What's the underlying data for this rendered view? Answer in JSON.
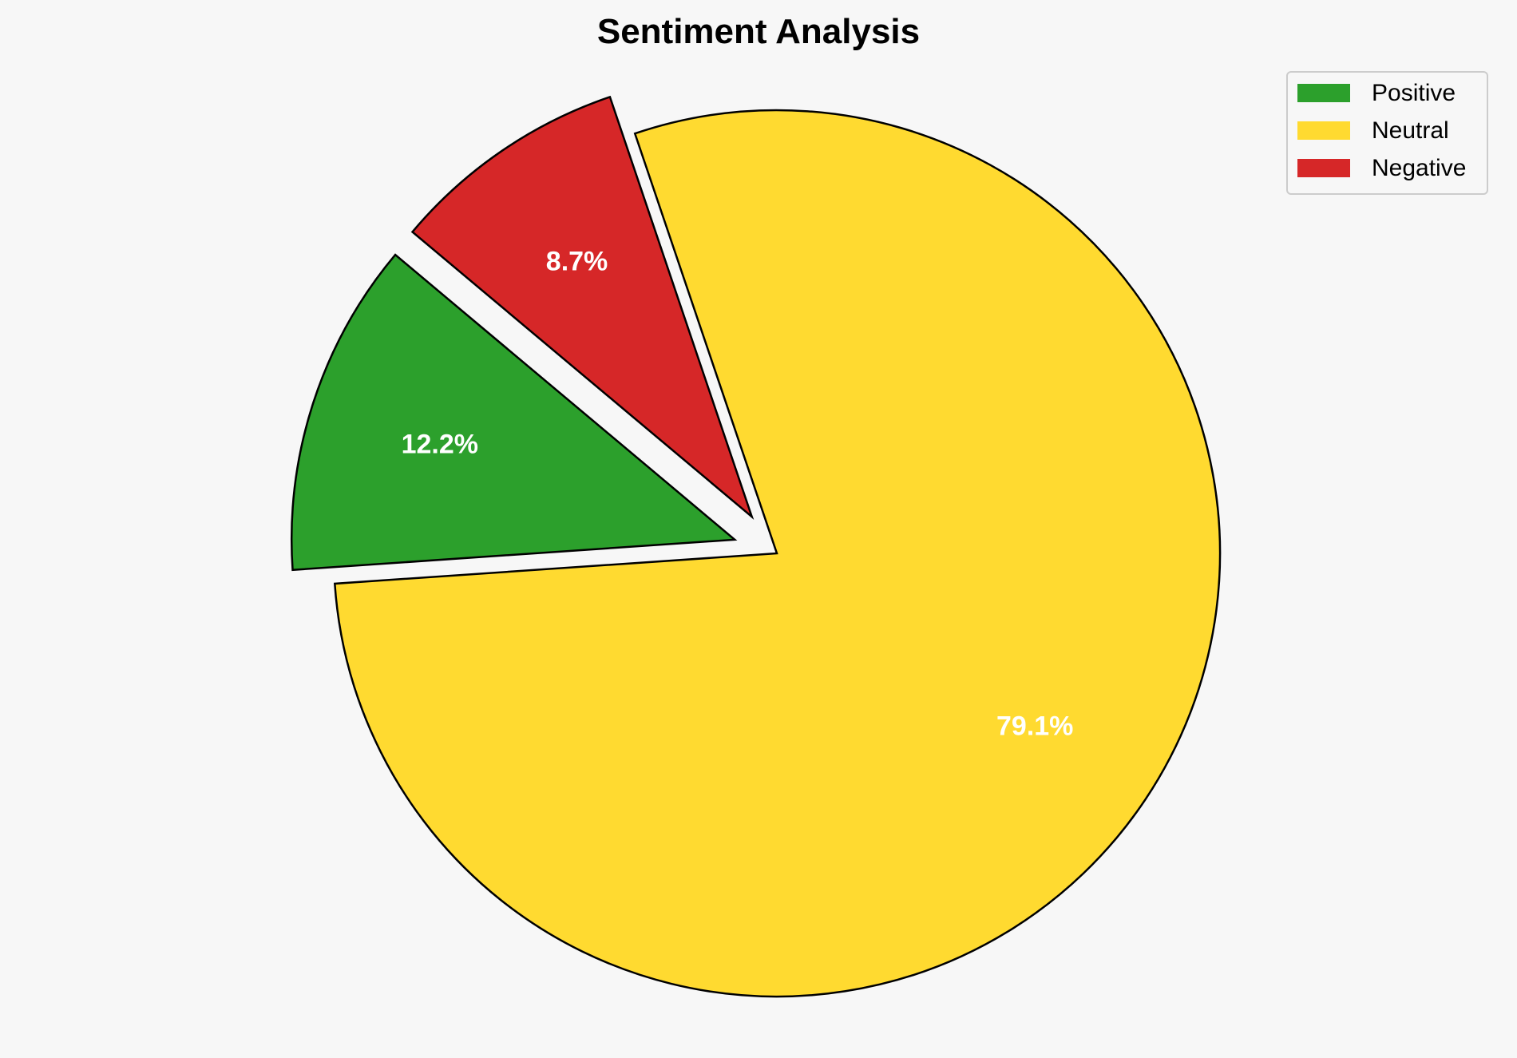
{
  "chart_data": {
    "type": "pie",
    "title": "Sentiment Analysis",
    "categories": [
      "Positive",
      "Neutral",
      "Negative"
    ],
    "values": [
      12.2,
      79.1,
      8.7
    ],
    "labels": [
      "12.2%",
      "79.1%",
      "8.7%"
    ],
    "colors": [
      "#2ca02c",
      "#ffda30",
      "#d62728"
    ],
    "explode": [
      0.1,
      0,
      0.1
    ],
    "start_angle": 140,
    "direction": "counterclockwise",
    "legend_position": "top-right",
    "edge_color": "#000000",
    "background": "#f7f7f7"
  }
}
